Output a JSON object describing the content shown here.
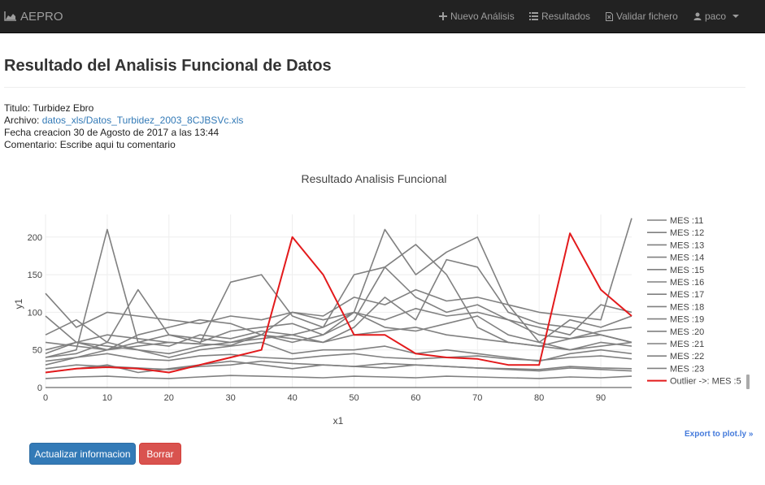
{
  "navbar": {
    "brand": "AEPRO",
    "items": [
      {
        "label": "Nuevo Análisis",
        "icon": "plus-icon"
      },
      {
        "label": "Resultados",
        "icon": "list-icon"
      },
      {
        "label": "Validar fichero",
        "icon": "file-icon"
      },
      {
        "label": "paco",
        "icon": "user-icon"
      }
    ]
  },
  "page": {
    "title": "Resultado del Analisis Funcional de Datos",
    "titulo_label": "Titulo:",
    "titulo_value": "Turbidez Ebro",
    "archivo_label": "Archivo:",
    "archivo_link": "datos_xls/Datos_Turbidez_2003_8CJBSVc.xls",
    "fecha_line": "Fecha creacion 30 de Agosto de 2017 a las 13:44",
    "comentario_line": "Comentario: Escribe aqui tu comentario"
  },
  "chart_data": {
    "type": "line",
    "title": "Resultado Analisis Funcional",
    "xlabel": "x1",
    "ylabel": "y1",
    "xlim": [
      0,
      95
    ],
    "ylim": [
      0,
      230
    ],
    "xticks": [
      0,
      10,
      20,
      30,
      40,
      50,
      60,
      70,
      80,
      90
    ],
    "yticks": [
      0,
      50,
      100,
      150,
      200
    ],
    "grid": true,
    "legend_position": "right",
    "normal_color": "#808080",
    "outlier_color": "#e31a1c",
    "legend": [
      "MES :11",
      "MES :12",
      "MES :13",
      "MES :14",
      "MES :15",
      "MES :16",
      "MES :17",
      "MES :18",
      "MES :19",
      "MES :20",
      "MES :21",
      "MES :22",
      "MES :23",
      "Outlier ->: MES :5"
    ],
    "x": [
      0,
      5,
      10,
      15,
      20,
      25,
      30,
      35,
      40,
      45,
      50,
      55,
      60,
      65,
      70,
      75,
      80,
      85,
      90,
      95
    ],
    "series": [
      {
        "values": [
          125,
          80,
          100,
          95,
          90,
          85,
          95,
          90,
          100,
          95,
          120,
          110,
          130,
          115,
          120,
          110,
          100,
          95,
          90,
          225
        ]
      },
      {
        "values": [
          45,
          60,
          50,
          55,
          60,
          58,
          140,
          150,
          95,
          80,
          100,
          210,
          150,
          180,
          200,
          110,
          60,
          90,
          80,
          95
        ]
      },
      {
        "values": [
          40,
          50,
          210,
          60,
          55,
          70,
          65,
          75,
          70,
          80,
          150,
          160,
          120,
          100,
          110,
          90,
          80,
          70,
          110,
          100
        ]
      },
      {
        "values": [
          70,
          90,
          60,
          130,
          70,
          60,
          75,
          80,
          85,
          70,
          100,
          90,
          105,
          95,
          100,
          90,
          70,
          65,
          75,
          80
        ]
      },
      {
        "values": [
          50,
          60,
          55,
          50,
          45,
          55,
          60,
          65,
          70,
          60,
          80,
          120,
          90,
          170,
          160,
          100,
          85,
          80,
          70,
          60
        ]
      },
      {
        "values": [
          30,
          40,
          50,
          60,
          70,
          65,
          60,
          70,
          100,
          90,
          100,
          80,
          75,
          85,
          95,
          70,
          60,
          50,
          60,
          55
        ]
      },
      {
        "values": [
          95,
          60,
          70,
          65,
          60,
          58,
          56,
          70,
          60,
          70,
          90,
          160,
          190,
          150,
          80,
          60,
          55,
          65,
          70,
          60
        ]
      },
      {
        "values": [
          40,
          45,
          60,
          50,
          40,
          50,
          55,
          60,
          45,
          50,
          50,
          55,
          45,
          50,
          45,
          40,
          35,
          45,
          50,
          45
        ]
      },
      {
        "values": [
          20,
          25,
          30,
          20,
          25,
          30,
          35,
          30,
          25,
          30,
          28,
          32,
          30,
          28,
          26,
          24,
          22,
          26,
          24,
          22
        ]
      },
      {
        "values": [
          60,
          55,
          50,
          70,
          80,
          90,
          85,
          70,
          65,
          60,
          70,
          75,
          80,
          70,
          65,
          60,
          55,
          50,
          55,
          60
        ]
      },
      {
        "values": [
          12,
          14,
          15,
          13,
          12,
          14,
          16,
          15,
          14,
          13,
          15,
          14,
          13,
          15,
          14,
          13,
          12,
          14,
          13,
          15
        ]
      },
      {
        "values": [
          35,
          40,
          45,
          38,
          36,
          42,
          44,
          40,
          38,
          42,
          45,
          40,
          38,
          40,
          42,
          38,
          36,
          40,
          42,
          38
        ]
      },
      {
        "values": [
          25,
          30,
          28,
          26,
          24,
          28,
          30,
          35,
          32,
          30,
          28,
          26,
          30,
          28,
          26,
          25,
          24,
          28,
          26,
          25
        ]
      },
      {
        "values": [
          20,
          25,
          27,
          25,
          20,
          30,
          40,
          50,
          200,
          150,
          70,
          70,
          45,
          40,
          38,
          30,
          30,
          205,
          130,
          95
        ],
        "outlier": true
      }
    ]
  },
  "export_label": "Export to plot.ly »",
  "buttons": {
    "update": "Actualizar informacion",
    "delete": "Borrar"
  }
}
